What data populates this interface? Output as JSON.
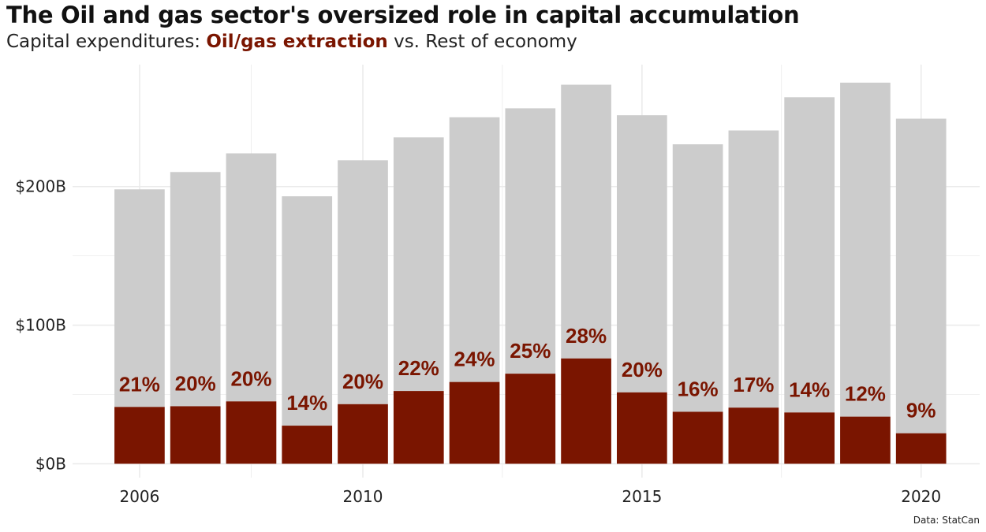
{
  "title": "The Oil and gas sector's oversized role in capital accumulation",
  "subtitle": {
    "prefix": "Capital expenditures: ",
    "highlight": "Oil/gas extraction",
    "suffix": " vs. Rest of economy"
  },
  "caption": "Data: StatCan",
  "colors": {
    "oil_gas": "#7a1500",
    "rest": "#cccccc",
    "grid": "#ebebeb",
    "label": "#7a1500"
  },
  "chart_data": {
    "type": "bar",
    "stacked": true,
    "x": [
      2006,
      2007,
      2008,
      2009,
      2010,
      2011,
      2012,
      2013,
      2014,
      2015,
      2016,
      2017,
      2018,
      2019,
      2020
    ],
    "series": [
      {
        "name": "Oil/gas extraction",
        "unit": "$B",
        "values": [
          41,
          41.5,
          45,
          27.5,
          43,
          52.5,
          59,
          65,
          76,
          51.5,
          37.5,
          40.5,
          37,
          34,
          22
        ]
      },
      {
        "name": "Rest of economy",
        "unit": "$B",
        "values": [
          157,
          169,
          179,
          165.5,
          176,
          183,
          191,
          191.5,
          197.5,
          200,
          193,
          200,
          227.5,
          241,
          227
        ]
      }
    ],
    "bar_labels": [
      "21%",
      "20%",
      "20%",
      "14%",
      "20%",
      "22%",
      "24%",
      "25%",
      "28%",
      "20%",
      "16%",
      "17%",
      "14%",
      "12%",
      "9%"
    ],
    "x_ticks": [
      {
        "value": 2006,
        "label": "2006"
      },
      {
        "value": 2010,
        "label": "2010"
      },
      {
        "value": 2015,
        "label": "2015"
      },
      {
        "value": 2020,
        "label": "2020"
      }
    ],
    "y_ticks": [
      {
        "value": 0,
        "label": "$0B"
      },
      {
        "value": 100,
        "label": "$100B"
      },
      {
        "value": 200,
        "label": "$200B"
      }
    ],
    "xlim": [
      2004.8,
      2021.05
    ],
    "ylim": [
      -10,
      288
    ],
    "grid": true,
    "legend": "none (encoded in subtitle)"
  }
}
